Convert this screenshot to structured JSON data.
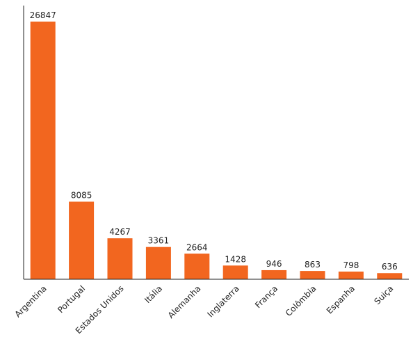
{
  "colors": {
    "bar": "#f2661f",
    "axis": "#222222",
    "text": "#222222"
  },
  "chart_data": {
    "type": "bar",
    "title": "",
    "xlabel": "",
    "ylabel": "",
    "grid": false,
    "legend": "none",
    "ylim": [
      0,
      26847
    ],
    "categories": [
      "Argentina",
      "Portugal",
      "Estados Unidos",
      "Itália",
      "Alemanha",
      "Inglaterra",
      "França",
      "Colômbia",
      "Espanha",
      "Suiça"
    ],
    "values": [
      26847,
      8085,
      4267,
      3361,
      2664,
      1428,
      946,
      863,
      798,
      636
    ]
  }
}
